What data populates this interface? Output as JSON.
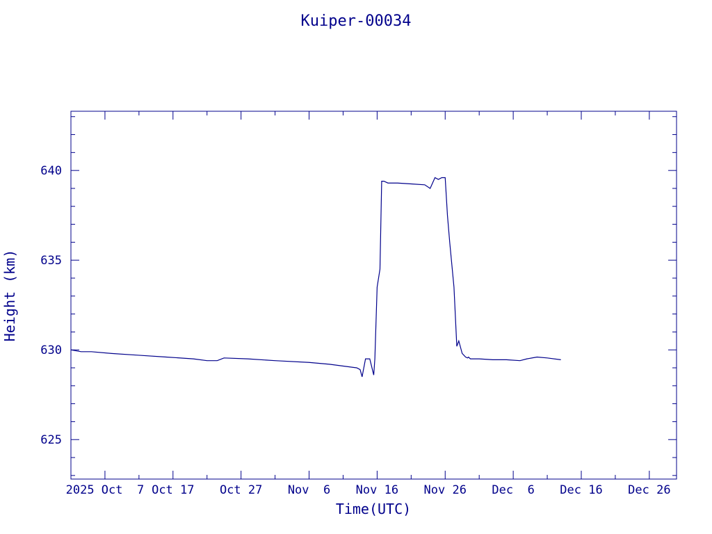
{
  "chart_data": {
    "type": "line",
    "title": "Kuiper-00034",
    "xlabel": "Time(UTC)",
    "ylabel": "Height (km)",
    "color": "#00008b",
    "xlim": [
      "2025-10-02",
      "2025-12-30"
    ],
    "ylim": [
      622.8,
      643.3
    ],
    "grid": false,
    "x_ticks": [
      {
        "date": "2025-10-07",
        "label": "2025 Oct  7"
      },
      {
        "date": "2025-10-17",
        "label": "Oct 17"
      },
      {
        "date": "2025-10-27",
        "label": "Oct 27"
      },
      {
        "date": "2025-11-06",
        "label": "Nov  6"
      },
      {
        "date": "2025-11-16",
        "label": "Nov 16"
      },
      {
        "date": "2025-11-26",
        "label": "Nov 26"
      },
      {
        "date": "2025-12-06",
        "label": "Dec  6"
      },
      {
        "date": "2025-12-16",
        "label": "Dec 16"
      },
      {
        "date": "2025-12-26",
        "label": "Dec 26"
      }
    ],
    "y_ticks": [
      {
        "value": 625,
        "label": "625"
      },
      {
        "value": 630,
        "label": "630"
      },
      {
        "value": 635,
        "label": "635"
      },
      {
        "value": 640,
        "label": "640"
      }
    ],
    "series": [
      {
        "x": [
          "2025-10-02T00:00",
          "2025-10-03T12:00",
          "2025-10-05T00:00",
          "2025-10-08T00:00",
          "2025-10-12T00:00",
          "2025-10-16T00:00",
          "2025-10-20T00:00",
          "2025-10-22T00:00",
          "2025-10-23T12:00",
          "2025-10-24T12:00",
          "2025-10-28T00:00",
          "2025-11-01T00:00",
          "2025-11-06T00:00",
          "2025-11-09T00:00",
          "2025-11-13T00:00",
          "2025-11-13T12:00",
          "2025-11-13T19:00",
          "2025-11-14T07:00",
          "2025-11-14T22:00",
          "2025-11-15T12:00",
          "2025-11-15T16:00",
          "2025-11-16T00:00",
          "2025-11-16T10:00",
          "2025-11-16T16:00",
          "2025-11-17T00:00",
          "2025-11-17T14:00",
          "2025-11-18T00:00",
          "2025-11-19T00:00",
          "2025-11-21T00:00",
          "2025-11-23T00:00",
          "2025-11-23T19:00",
          "2025-11-24T12:00",
          "2025-11-25T00:00",
          "2025-11-25T12:00",
          "2025-11-26T00:00",
          "2025-11-26T08:00",
          "2025-11-26T16:00",
          "2025-11-27T07:00",
          "2025-11-27T17:00",
          "2025-11-28T00:00",
          "2025-11-28T12:00",
          "2025-11-29T00:00",
          "2025-11-29T07:00",
          "2025-11-29T10:00",
          "2025-11-29T17:00",
          "2025-11-30T00:00",
          "2025-12-01T00:00",
          "2025-12-03T00:00",
          "2025-12-05T00:00",
          "2025-12-07T00:00",
          "2025-12-08T00:00",
          "2025-12-09T12:00",
          "2025-12-11T00:00",
          "2025-12-13T00:00"
        ],
        "y": [
          630.0,
          629.9,
          629.9,
          629.8,
          629.7,
          629.6,
          629.5,
          629.4,
          629.4,
          629.55,
          629.5,
          629.4,
          629.3,
          629.2,
          629.0,
          628.9,
          628.5,
          629.5,
          629.5,
          628.6,
          629.5,
          633.5,
          634.5,
          639.4,
          639.4,
          639.3,
          639.3,
          639.3,
          639.25,
          639.2,
          639.0,
          639.6,
          639.5,
          639.6,
          639.6,
          637.5,
          636.0,
          633.5,
          630.2,
          630.5,
          629.8,
          629.6,
          629.55,
          629.6,
          629.5,
          629.5,
          629.5,
          629.45,
          629.45,
          629.4,
          629.5,
          629.6,
          629.55,
          629.45
        ]
      }
    ]
  }
}
